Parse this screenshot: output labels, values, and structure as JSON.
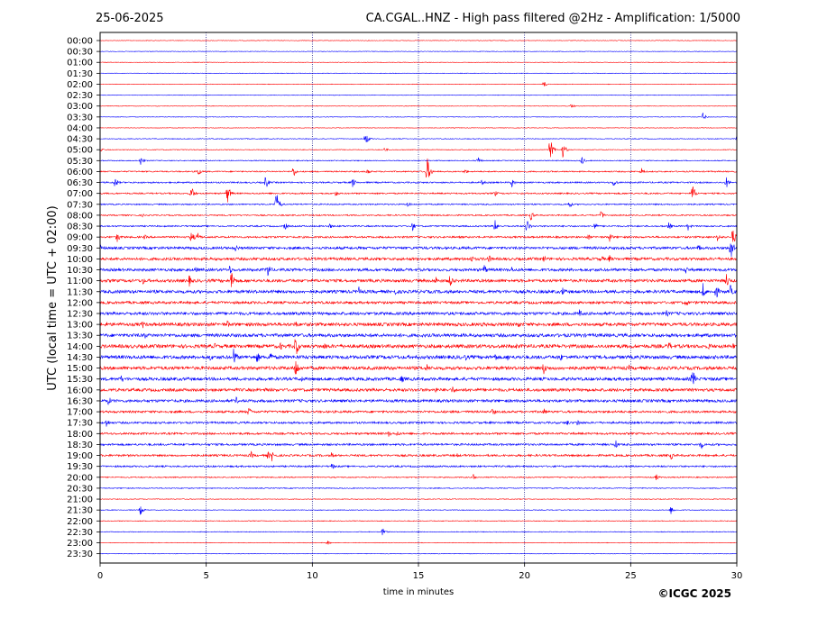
{
  "header": {
    "date": "25-06-2025",
    "title": "CA.CGAL..HNZ - High pass filtered @2Hz - Amplification: 1/5000"
  },
  "footer": {
    "copyright": "©ICGC 2025"
  },
  "colors": {
    "odd_trace": "#ff0000",
    "even_trace": "#0000ff",
    "grid": "#000080"
  },
  "chart_data": {
    "type": "line",
    "title": "CA.CGAL..HNZ - High pass filtered @2Hz - Amplification: 1/5000",
    "xlabel": "time in minutes",
    "ylabel": "UTC (local time = UTC + 02:00)",
    "xlim": [
      0,
      30
    ],
    "xticks": [
      0,
      5,
      10,
      15,
      20,
      25,
      30
    ],
    "grid": "vertical dotted lines at each 5 minutes",
    "row_labels": [
      "00:00",
      "00:30",
      "01:00",
      "01:30",
      "02:00",
      "02:30",
      "03:00",
      "03:30",
      "04:00",
      "04:30",
      "05:00",
      "05:30",
      "06:00",
      "06:30",
      "07:00",
      "07:30",
      "08:00",
      "08:30",
      "09:00",
      "09:30",
      "10:00",
      "10:30",
      "11:00",
      "11:30",
      "12:00",
      "12:30",
      "13:00",
      "13:30",
      "14:00",
      "14:30",
      "15:00",
      "15:30",
      "16:00",
      "16:30",
      "17:00",
      "17:30",
      "18:00",
      "18:30",
      "19:00",
      "19:30",
      "20:00",
      "20:30",
      "21:00",
      "21:30",
      "22:00",
      "22:30",
      "23:00",
      "23:30"
    ],
    "noise_level": [
      0.3,
      0.3,
      0.3,
      0.3,
      0.3,
      0.3,
      0.3,
      0.3,
      0.3,
      0.4,
      0.4,
      0.5,
      0.7,
      0.8,
      0.8,
      0.7,
      0.7,
      0.8,
      1.0,
      1.4,
      1.5,
      1.5,
      1.6,
      1.7,
      1.4,
      1.6,
      1.8,
      1.8,
      1.9,
      1.9,
      1.8,
      1.7,
      1.6,
      1.5,
      1.2,
      1.1,
      1.1,
      1.1,
      1.1,
      0.9,
      0.6,
      0.5,
      0.4,
      0.4,
      0.4,
      0.4,
      0.3,
      0.3
    ],
    "events": [
      {
        "row": 4,
        "minute": 20.9,
        "amp": 4
      },
      {
        "row": 6,
        "minute": 22.2,
        "amp": 3
      },
      {
        "row": 7,
        "minute": 28.4,
        "amp": 5
      },
      {
        "row": 9,
        "minute": 12.5,
        "amp": 8
      },
      {
        "row": 9,
        "minute": 30.0,
        "amp": 3
      },
      {
        "row": 10,
        "minute": 0.0,
        "amp": 3
      },
      {
        "row": 10,
        "minute": 13.4,
        "amp": 3
      },
      {
        "row": 10,
        "minute": 21.2,
        "amp": 14
      },
      {
        "row": 10,
        "minute": 21.8,
        "amp": 9
      },
      {
        "row": 11,
        "minute": 1.9,
        "amp": 6
      },
      {
        "row": 11,
        "minute": 17.8,
        "amp": 5
      },
      {
        "row": 11,
        "minute": 22.7,
        "amp": 5
      },
      {
        "row": 12,
        "minute": 4.6,
        "amp": 6
      },
      {
        "row": 12,
        "minute": 9.1,
        "amp": 7
      },
      {
        "row": 12,
        "minute": 12.6,
        "amp": 4
      },
      {
        "row": 12,
        "minute": 15.4,
        "amp": 18
      },
      {
        "row": 12,
        "minute": 17.2,
        "amp": 3
      },
      {
        "row": 12,
        "minute": 25.5,
        "amp": 5
      },
      {
        "row": 13,
        "minute": 0.7,
        "amp": 7
      },
      {
        "row": 13,
        "minute": 7.8,
        "amp": 8
      },
      {
        "row": 13,
        "minute": 11.9,
        "amp": 6
      },
      {
        "row": 13,
        "minute": 18.0,
        "amp": 4
      },
      {
        "row": 13,
        "minute": 19.4,
        "amp": 6
      },
      {
        "row": 13,
        "minute": 24.2,
        "amp": 6
      },
      {
        "row": 13,
        "minute": 29.5,
        "amp": 7
      },
      {
        "row": 14,
        "minute": 4.3,
        "amp": 9
      },
      {
        "row": 14,
        "minute": 6.0,
        "amp": 12
      },
      {
        "row": 14,
        "minute": 11.1,
        "amp": 4
      },
      {
        "row": 14,
        "minute": 18.6,
        "amp": 4
      },
      {
        "row": 14,
        "minute": 27.9,
        "amp": 12
      },
      {
        "row": 15,
        "minute": 8.3,
        "amp": 16
      },
      {
        "row": 15,
        "minute": 14.5,
        "amp": 4
      },
      {
        "row": 15,
        "minute": 22.1,
        "amp": 5
      },
      {
        "row": 16,
        "minute": 2.0,
        "amp": 2
      },
      {
        "row": 16,
        "minute": 20.3,
        "amp": 6
      },
      {
        "row": 16,
        "minute": 23.6,
        "amp": 6
      },
      {
        "row": 17,
        "minute": 8.7,
        "amp": 5
      },
      {
        "row": 17,
        "minute": 10.8,
        "amp": 4
      },
      {
        "row": 17,
        "minute": 14.7,
        "amp": 6
      },
      {
        "row": 17,
        "minute": 18.6,
        "amp": 8
      },
      {
        "row": 17,
        "minute": 20.1,
        "amp": 9
      },
      {
        "row": 17,
        "minute": 23.3,
        "amp": 5
      },
      {
        "row": 17,
        "minute": 26.8,
        "amp": 5
      },
      {
        "row": 17,
        "minute": 27.7,
        "amp": 5
      },
      {
        "row": 18,
        "minute": 0.8,
        "amp": 7
      },
      {
        "row": 18,
        "minute": 2.1,
        "amp": 3
      },
      {
        "row": 18,
        "minute": 4.3,
        "amp": 8
      },
      {
        "row": 18,
        "minute": 4.6,
        "amp": 7
      },
      {
        "row": 18,
        "minute": 23.0,
        "amp": 4
      },
      {
        "row": 18,
        "minute": 24.0,
        "amp": 6
      },
      {
        "row": 18,
        "minute": 29.1,
        "amp": 6
      },
      {
        "row": 18,
        "minute": 29.8,
        "amp": 11
      },
      {
        "row": 19,
        "minute": 0.0,
        "amp": 5
      },
      {
        "row": 19,
        "minute": 6.4,
        "amp": 5
      },
      {
        "row": 19,
        "minute": 28.2,
        "amp": 5
      },
      {
        "row": 19,
        "minute": 29.7,
        "amp": 16
      },
      {
        "row": 20,
        "minute": 17.5,
        "amp": 5
      },
      {
        "row": 20,
        "minute": 18.3,
        "amp": 6
      },
      {
        "row": 20,
        "minute": 20.9,
        "amp": 5
      },
      {
        "row": 20,
        "minute": 23.6,
        "amp": 5
      },
      {
        "row": 20,
        "minute": 24.0,
        "amp": 5
      },
      {
        "row": 21,
        "minute": 4.5,
        "amp": 5
      },
      {
        "row": 21,
        "minute": 6.1,
        "amp": 6
      },
      {
        "row": 21,
        "minute": 7.9,
        "amp": 10
      },
      {
        "row": 21,
        "minute": 18.1,
        "amp": 7
      },
      {
        "row": 21,
        "minute": 19.4,
        "amp": 4
      },
      {
        "row": 21,
        "minute": 27.6,
        "amp": 5
      },
      {
        "row": 22,
        "minute": 2.0,
        "amp": 5
      },
      {
        "row": 22,
        "minute": 4.2,
        "amp": 7
      },
      {
        "row": 22,
        "minute": 6.2,
        "amp": 14
      },
      {
        "row": 22,
        "minute": 12.7,
        "amp": 3
      },
      {
        "row": 22,
        "minute": 15.8,
        "amp": 6
      },
      {
        "row": 22,
        "minute": 16.5,
        "amp": 9
      },
      {
        "row": 22,
        "minute": 27.5,
        "amp": 4
      },
      {
        "row": 22,
        "minute": 29.5,
        "amp": 10
      },
      {
        "row": 23,
        "minute": 12.2,
        "amp": 6
      },
      {
        "row": 23,
        "minute": 13.9,
        "amp": 4
      },
      {
        "row": 23,
        "minute": 21.8,
        "amp": 6
      },
      {
        "row": 23,
        "minute": 28.4,
        "amp": 10
      },
      {
        "row": 23,
        "minute": 29.0,
        "amp": 11
      },
      {
        "row": 23,
        "minute": 29.7,
        "amp": 8
      },
      {
        "row": 24,
        "minute": 27.6,
        "amp": 6
      },
      {
        "row": 25,
        "minute": 22.6,
        "amp": 6
      },
      {
        "row": 25,
        "minute": 26.7,
        "amp": 5
      },
      {
        "row": 26,
        "minute": 0.3,
        "amp": 4
      },
      {
        "row": 26,
        "minute": 2.0,
        "amp": 5
      },
      {
        "row": 26,
        "minute": 6.0,
        "amp": 5
      },
      {
        "row": 26,
        "minute": 9.2,
        "amp": 5
      },
      {
        "row": 26,
        "minute": 18.0,
        "amp": 4
      },
      {
        "row": 26,
        "minute": 19.7,
        "amp": 5
      },
      {
        "row": 27,
        "minute": 2.1,
        "amp": 5
      },
      {
        "row": 28,
        "minute": 5.4,
        "amp": 4
      },
      {
        "row": 28,
        "minute": 8.5,
        "amp": 5
      },
      {
        "row": 28,
        "minute": 9.2,
        "amp": 15
      },
      {
        "row": 28,
        "minute": 10.6,
        "amp": 5
      },
      {
        "row": 28,
        "minute": 19.6,
        "amp": 4
      },
      {
        "row": 28,
        "minute": 26.8,
        "amp": 6
      },
      {
        "row": 28,
        "minute": 28.7,
        "amp": 5
      },
      {
        "row": 28,
        "minute": 29.8,
        "amp": 5
      },
      {
        "row": 29,
        "minute": 5.2,
        "amp": 5
      },
      {
        "row": 29,
        "minute": 6.3,
        "amp": 12
      },
      {
        "row": 29,
        "minute": 7.4,
        "amp": 8
      },
      {
        "row": 29,
        "minute": 8.0,
        "amp": 9
      },
      {
        "row": 29,
        "minute": 17.2,
        "amp": 5
      },
      {
        "row": 29,
        "minute": 18.6,
        "amp": 6
      },
      {
        "row": 29,
        "minute": 19.2,
        "amp": 5
      },
      {
        "row": 29,
        "minute": 21.7,
        "amp": 5
      },
      {
        "row": 30,
        "minute": 9.2,
        "amp": 14
      },
      {
        "row": 30,
        "minute": 15.4,
        "amp": 5
      },
      {
        "row": 30,
        "minute": 20.9,
        "amp": 9
      },
      {
        "row": 30,
        "minute": 24.9,
        "amp": 4
      },
      {
        "row": 30,
        "minute": 29.2,
        "amp": 5
      },
      {
        "row": 31,
        "minute": 1.0,
        "amp": 5
      },
      {
        "row": 31,
        "minute": 9.5,
        "amp": 4
      },
      {
        "row": 31,
        "minute": 14.2,
        "amp": 6
      },
      {
        "row": 31,
        "minute": 27.9,
        "amp": 14
      },
      {
        "row": 32,
        "minute": 0.1,
        "amp": 3
      },
      {
        "row": 32,
        "minute": 7.8,
        "amp": 4
      },
      {
        "row": 32,
        "minute": 15.8,
        "amp": 4
      },
      {
        "row": 32,
        "minute": 16.6,
        "amp": 5
      },
      {
        "row": 33,
        "minute": 0.4,
        "amp": 6
      },
      {
        "row": 33,
        "minute": 6.4,
        "amp": 5
      },
      {
        "row": 34,
        "minute": 7.0,
        "amp": 6
      },
      {
        "row": 34,
        "minute": 18.5,
        "amp": 5
      },
      {
        "row": 34,
        "minute": 20.9,
        "amp": 5
      },
      {
        "row": 35,
        "minute": 0.3,
        "amp": 6
      },
      {
        "row": 35,
        "minute": 22.0,
        "amp": 4
      },
      {
        "row": 35,
        "minute": 22.5,
        "amp": 5
      },
      {
        "row": 36,
        "minute": 13.6,
        "amp": 4
      },
      {
        "row": 36,
        "minute": 14.0,
        "amp": 4
      },
      {
        "row": 37,
        "minute": 24.3,
        "amp": 5
      },
      {
        "row": 37,
        "minute": 28.3,
        "amp": 6
      },
      {
        "row": 38,
        "minute": 7.1,
        "amp": 5
      },
      {
        "row": 38,
        "minute": 7.9,
        "amp": 5
      },
      {
        "row": 38,
        "minute": 8.1,
        "amp": 7
      },
      {
        "row": 38,
        "minute": 10.9,
        "amp": 4
      },
      {
        "row": 38,
        "minute": 16.8,
        "amp": 3
      },
      {
        "row": 38,
        "minute": 26.9,
        "amp": 5
      },
      {
        "row": 39,
        "minute": 10.9,
        "amp": 5
      },
      {
        "row": 40,
        "minute": 17.6,
        "amp": 4
      },
      {
        "row": 40,
        "minute": 26.2,
        "amp": 4
      },
      {
        "row": 43,
        "minute": 1.9,
        "amp": 6
      },
      {
        "row": 43,
        "minute": 26.9,
        "amp": 5
      },
      {
        "row": 45,
        "minute": 13.3,
        "amp": 5
      },
      {
        "row": 46,
        "minute": 10.7,
        "amp": 3
      }
    ]
  }
}
